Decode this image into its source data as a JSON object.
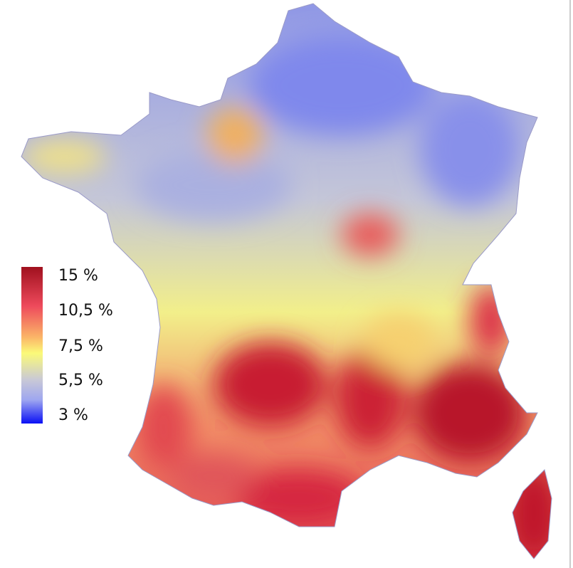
{
  "legend": {
    "labels": [
      "15 %",
      "10,5 %",
      "7,5 %",
      "5,5 %",
      "3 %"
    ]
  }
}
